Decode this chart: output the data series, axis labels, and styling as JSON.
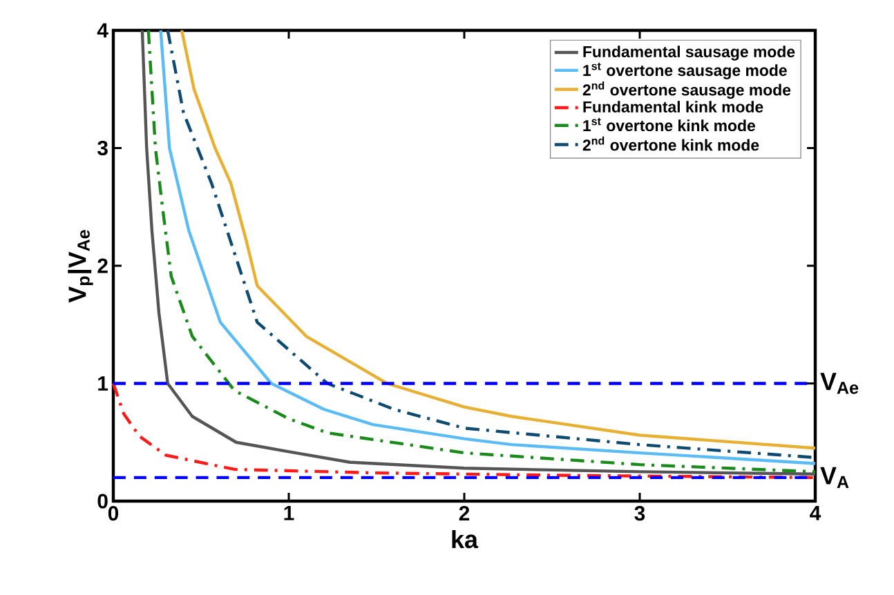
{
  "chart_data": {
    "type": "line",
    "xlabel": "ka",
    "ylabel": "V$_{p}$|V$_{Ae}$",
    "xlim": [
      0,
      4
    ],
    "ylim": [
      0,
      4
    ],
    "xticks": [
      0,
      1,
      2,
      3,
      4
    ],
    "yticks": [
      0,
      1,
      2,
      3,
      4
    ],
    "legend": "top right",
    "grid": false,
    "marker": "none",
    "series": [
      {
        "name": "Fundamental sausage mode",
        "color": "#555555",
        "line_style": "solid",
        "x": [
          0.165,
          0.19,
          0.22,
          0.26,
          0.31,
          0.45,
          0.7,
          1,
          1.35,
          2,
          3,
          4
        ],
        "values": [
          4,
          3,
          2.3,
          1.6,
          1.0,
          0.72,
          0.5,
          0.42,
          0.33,
          0.28,
          0.25,
          0.23
        ]
      },
      {
        "name": "1$^{st}$ overtone sausage mode",
        "color": "#5bbcf5",
        "line_style": "solid",
        "x": [
          0.27,
          0.32,
          0.43,
          0.61,
          0.9,
          1.2,
          1.48,
          2,
          2.27,
          3,
          4
        ],
        "values": [
          4,
          3,
          2.3,
          1.52,
          1.0,
          0.78,
          0.65,
          0.53,
          0.48,
          0.41,
          0.32
        ]
      },
      {
        "name": "2$^{nd}$ overtone sausage mode",
        "color": "#e8b033",
        "line_style": "solid",
        "x": [
          0.39,
          0.46,
          0.58,
          0.67,
          0.76,
          0.82,
          1.1,
          1.56,
          2,
          2.27,
          3,
          4
        ],
        "values": [
          4,
          3.5,
          3,
          2.7,
          2.2,
          1.83,
          1.4,
          1.0,
          0.8,
          0.72,
          0.56,
          0.45
        ]
      },
      {
        "name": "Fundamental kink mode",
        "color": "#ff1a1a",
        "line_style": "dashdot",
        "x": [
          0,
          0.06,
          0.15,
          0.3,
          0.69,
          1.48,
          2.5,
          4
        ],
        "values": [
          1,
          0.74,
          0.55,
          0.39,
          0.27,
          0.24,
          0.22,
          0.2
        ]
      },
      {
        "name": "1$^{st}$ overtone kink mode",
        "color": "#1a8a1a",
        "line_style": "dashdot",
        "x": [
          0.2,
          0.24,
          0.28,
          0.33,
          0.45,
          0.69,
          1,
          1.22,
          2,
          3,
          4
        ],
        "values": [
          4,
          3,
          2.5,
          1.91,
          1.4,
          0.94,
          0.7,
          0.58,
          0.41,
          0.31,
          0.25
        ]
      },
      {
        "name": "2$^{nd}$ overtone kink mode",
        "color": "#0f4a70",
        "line_style": "dashdot",
        "x": [
          0.31,
          0.4,
          0.56,
          0.82,
          1.22,
          1.6,
          2,
          3,
          4
        ],
        "values": [
          4,
          3.3,
          2.7,
          1.52,
          1.0,
          0.78,
          0.62,
          0.48,
          0.37
        ]
      }
    ],
    "ref_lines": [
      {
        "axis": "y",
        "value": 1,
        "label": "V$_{Ae}$",
        "color": "#0000ff",
        "line_style": "dashed"
      },
      {
        "axis": "y",
        "value": 0.2,
        "label": "V$_{A}$",
        "color": "#0000ff",
        "line_style": "dashed"
      }
    ]
  }
}
